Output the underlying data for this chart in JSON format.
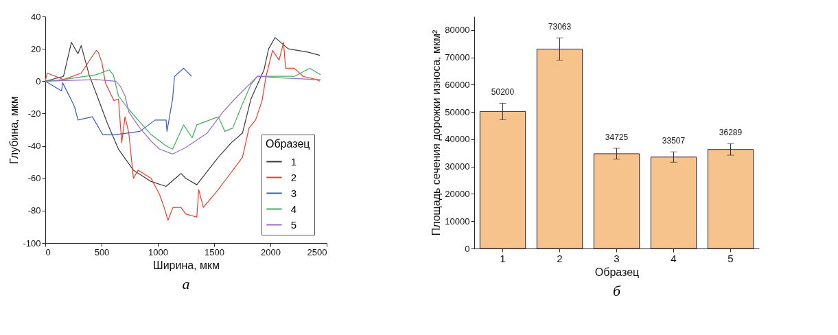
{
  "chart_data": [
    {
      "type": "line",
      "xlabel": "Ширина, мкм",
      "ylabel": "Глубина, мкм",
      "legend_title": "Образец",
      "legend": "bottom right",
      "grid": false,
      "xlim": [
        0,
        2500
      ],
      "xticks": [
        0,
        500,
        1000,
        1500,
        2000,
        2500
      ],
      "ylim": [
        -100,
        40
      ],
      "yticks": [
        -100,
        -80,
        -60,
        -40,
        -20,
        0,
        20,
        40
      ],
      "annotations": [
        "а"
      ],
      "series": [
        {
          "name": "1",
          "color": "#3a3a3a",
          "x": [
            0,
            162,
            232,
            290,
            319,
            389,
            476,
            551,
            650,
            783,
            940,
            1073,
            1206,
            1247,
            1346,
            1537,
            1653,
            1752,
            1827,
            1943,
            1984,
            2042,
            2158,
            2332,
            2440
          ],
          "values": [
            0,
            3,
            24,
            17,
            22,
            4,
            -12,
            -26,
            -42,
            -55,
            -62,
            -65,
            -57,
            -60,
            -64,
            -47,
            -38,
            -32,
            -11,
            7,
            20,
            27,
            20,
            18,
            16
          ]
        },
        {
          "name": "2",
          "color": "#f03a2a",
          "x": [
            0,
            17,
            162,
            319,
            452,
            470,
            505,
            534,
            609,
            650,
            679,
            708,
            742,
            783,
            824,
            940,
            1015,
            1056,
            1090,
            1134,
            1206,
            1247,
            1346,
            1363,
            1404,
            1537,
            1634,
            1752,
            1810,
            1868,
            1926,
            1961,
            2019,
            2077,
            2117,
            2135,
            2213,
            2291,
            2407,
            2440
          ],
          "values": [
            0,
            5,
            1,
            5,
            19,
            18,
            11,
            -1,
            -12,
            -11,
            -38,
            -22,
            -32,
            -60,
            -55,
            -60,
            -70,
            -78,
            -86,
            -78,
            -78,
            -82,
            -84,
            -67,
            -78,
            -67,
            -58,
            -47,
            -29,
            -24,
            -12,
            3,
            19,
            13,
            24,
            8,
            8,
            3,
            1,
            0
          ]
        },
        {
          "name": "3",
          "color": "#3b5db0",
          "x": [
            0,
            145,
            154,
            220,
            261,
            290,
            418,
            510,
            627,
            742,
            841,
            975,
            1073,
            1081,
            1131,
            1148,
            1229,
            1300
          ],
          "values": [
            0,
            -6,
            -1,
            -10,
            -16,
            -24,
            -22,
            -33,
            -33,
            -32,
            -31,
            -24,
            -24,
            -31,
            -11,
            3,
            8,
            3
          ]
        },
        {
          "name": "4",
          "color": "#3fae55",
          "x": [
            0,
            162,
            452,
            568,
            604,
            650,
            725,
            824,
            940,
            1073,
            1131,
            1229,
            1305,
            1346,
            1537,
            1595,
            1665,
            1752,
            1827,
            1885,
            2019,
            2213,
            2349,
            2445
          ],
          "values": [
            0,
            1,
            4,
            7,
            4,
            -9,
            -16,
            -24,
            -33,
            -40,
            -42,
            -27,
            -35,
            -27,
            -22,
            -31,
            -29,
            -14,
            -2,
            3,
            3,
            3,
            8,
            4
          ]
        },
        {
          "name": "5",
          "color": "#9b6cc8",
          "x": [
            0,
            452,
            627,
            665,
            708,
            742,
            841,
            940,
            1015,
            1131,
            1247,
            1439,
            1578,
            1711,
            1827,
            1885,
            2117,
            2407,
            2445
          ],
          "values": [
            0,
            1,
            0,
            -3,
            -9,
            -19,
            -29,
            -37,
            -42,
            -45,
            -41,
            -32,
            -19,
            -9,
            -1,
            3,
            2,
            1,
            1
          ]
        }
      ]
    },
    {
      "type": "bar",
      "xlabel": "Образец",
      "ylabel": "Площадь сечения дорожки износа, мкм²",
      "categories": [
        "1",
        "2",
        "3",
        "4",
        "5"
      ],
      "values": [
        50200,
        73063,
        34725,
        33507,
        36289
      ],
      "errors": [
        3000,
        4100,
        2000,
        1900,
        2100
      ],
      "color": "#f5c38b",
      "data_labels": true,
      "grid": false,
      "ylim": [
        0,
        85000
      ],
      "yticks": [
        0,
        10000,
        20000,
        30000,
        40000,
        50000,
        60000,
        70000,
        80000
      ],
      "annotations": [
        "б"
      ]
    }
  ]
}
